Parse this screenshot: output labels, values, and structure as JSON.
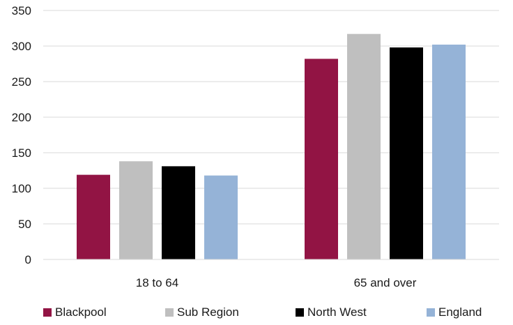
{
  "chart_data": {
    "type": "bar",
    "categories": [
      "18 to 64",
      "65 and over"
    ],
    "series": [
      {
        "name": "Blackpool",
        "color": "#921444",
        "values": [
          119,
          282
        ]
      },
      {
        "name": "Sub Region",
        "color": "#bfbfbf",
        "values": [
          138,
          317
        ]
      },
      {
        "name": "North West",
        "color": "#000000",
        "values": [
          131,
          298
        ]
      },
      {
        "name": "England",
        "color": "#95b3d7",
        "values": [
          118,
          302
        ]
      }
    ],
    "ylim": [
      0,
      350
    ],
    "yticks": [
      0,
      50,
      100,
      150,
      200,
      250,
      300,
      350
    ],
    "grid": true,
    "legend_position": "bottom"
  }
}
